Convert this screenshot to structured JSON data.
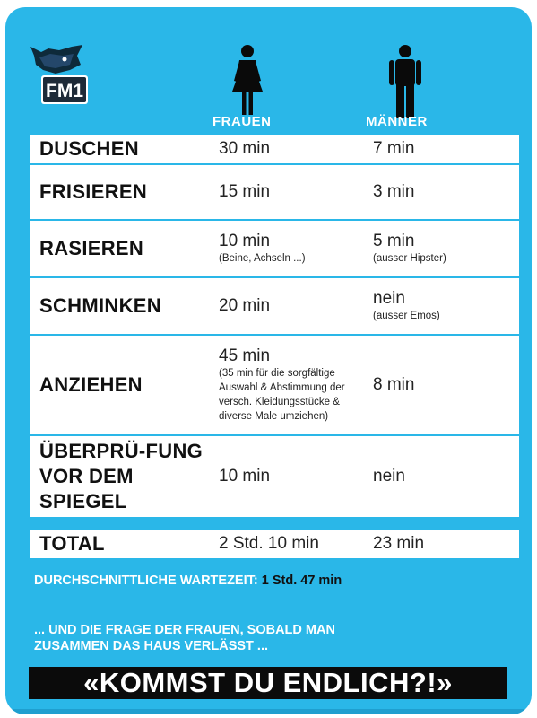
{
  "brand": {
    "logo_text": "FM1"
  },
  "headers": {
    "women": "FRAUEN",
    "men": "MÄNNER"
  },
  "rows": [
    {
      "label": "DUSCHEN",
      "women": "30 min",
      "women_note": "",
      "men": "7 min",
      "men_note": ""
    },
    {
      "label": "FRISIEREN",
      "women": "15 min",
      "women_note": "",
      "men": "3 min",
      "men_note": ""
    },
    {
      "label": "RASIEREN",
      "women": "10 min",
      "women_note": "(Beine, Achseln ...)",
      "men": "5 min",
      "men_note": "(ausser Hipster)"
    },
    {
      "label": "SCHMINKEN",
      "women": "20 min",
      "women_note": "",
      "men": "nein",
      "men_note": "(ausser Emos)"
    },
    {
      "label": "ANZIEHEN",
      "women": "45 min",
      "women_note": "(35 min für die sorgfältige Auswahl & Abstimmung der versch. Kleidungsstücke & diverse Male umziehen)",
      "men": "8 min",
      "men_note": ""
    },
    {
      "label": "ÜBERPRÜ-FUNG VOR DEM SPIEGEL",
      "women": "10 min",
      "women_note": "",
      "men": "nein",
      "men_note": ""
    }
  ],
  "total": {
    "label": "TOTAL",
    "women": "2 Std. 10 min",
    "men": "23 min"
  },
  "average": {
    "label": "DURCHSCHNITTLICHE WARTEZEIT:",
    "value": "1 Std. 47 min"
  },
  "question": {
    "line1": "... UND DIE FRAGE DER FRAUEN, SOBALD MAN",
    "line2": "ZUSAMMEN DAS HAUS VERLÄSST ..."
  },
  "punchline": "«KOMMST DU ENDLICH?!»",
  "colors": {
    "background": "#2ab7e8",
    "row": "#ffffff",
    "banner": "#0b0b0b"
  },
  "icons": {
    "logo": "bull-head-logo",
    "women": "woman-icon",
    "men": "man-icon"
  }
}
